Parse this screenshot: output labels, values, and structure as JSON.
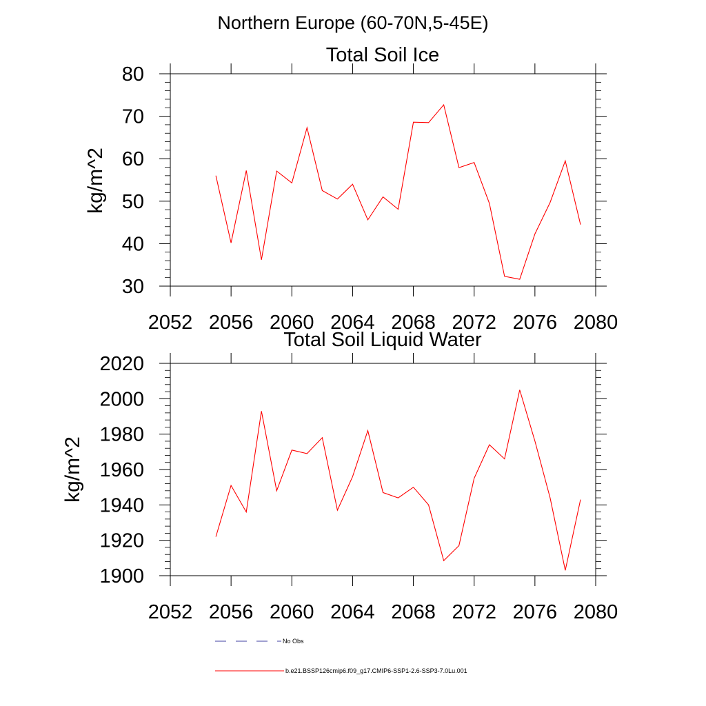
{
  "suptitle": "Northern Europe (60-70N,5-45E)",
  "colors": {
    "model_line": "#ff0000",
    "obs_line": "#3f3fa0",
    "axis": "#000000"
  },
  "chart_data": [
    {
      "type": "line",
      "title": "Total Soil Ice",
      "ylabel": "kg/m^2",
      "xlim": [
        2052,
        2080
      ],
      "ylim": [
        30,
        80
      ],
      "xticks": [
        2052,
        2056,
        2060,
        2064,
        2068,
        2072,
        2076,
        2080
      ],
      "yticks": [
        30,
        40,
        50,
        60,
        70,
        80
      ],
      "series": [
        {
          "name": "b.e21.BSSP126cmip6.f09_g17.CMIP6-SSP1-2.6-SSP3-7.0Lu.001",
          "color": "#ff0000",
          "x": [
            2055,
            2056,
            2057,
            2058,
            2059,
            2060,
            2061,
            2062,
            2063,
            2064,
            2065,
            2066,
            2067,
            2068,
            2069,
            2070,
            2071,
            2072,
            2073,
            2074,
            2075,
            2076,
            2077,
            2078,
            2079
          ],
          "y": [
            56.0,
            40.2,
            57.2,
            36.2,
            57.1,
            54.3,
            67.3,
            52.5,
            50.5,
            54.0,
            45.6,
            51.0,
            48.1,
            68.6,
            68.5,
            72.7,
            57.9,
            59.1,
            49.5,
            32.3,
            31.6,
            42.3,
            49.7,
            59.5,
            44.5
          ]
        }
      ]
    },
    {
      "type": "line",
      "title": "Total Soil Liquid Water",
      "ylabel": "kg/m^2",
      "xlim": [
        2052,
        2080
      ],
      "ylim": [
        1900,
        2020
      ],
      "xticks": [
        2052,
        2056,
        2060,
        2064,
        2068,
        2072,
        2076,
        2080
      ],
      "yticks": [
        1900,
        1920,
        1940,
        1960,
        1980,
        2000,
        2020
      ],
      "series": [
        {
          "name": "b.e21.BSSP126cmip6.f09_g17.CMIP6-SSP1-2.6-SSP3-7.0Lu.001",
          "color": "#ff0000",
          "x": [
            2055,
            2056,
            2057,
            2058,
            2059,
            2060,
            2061,
            2062,
            2063,
            2064,
            2065,
            2066,
            2067,
            2068,
            2069,
            2070,
            2071,
            2072,
            2073,
            2074,
            2075,
            2076,
            2077,
            2078,
            2079
          ],
          "y": [
            1922,
            1951,
            1936,
            1993,
            1948,
            1971,
            1969,
            1978,
            1937,
            1956,
            1982,
            1947,
            1944,
            1950,
            1940,
            1908.5,
            1917,
            1955,
            1974,
            1966,
            2005,
            1976,
            1944,
            1903,
            1943
          ]
        }
      ]
    }
  ],
  "legend": [
    {
      "label": "No Obs",
      "style": "dashed",
      "color": "#3f3fa0"
    },
    {
      "label": "b.e21.BSSP126cmip6.f09_g17.CMIP6-SSP1-2.6-SSP3-7.0Lu.001",
      "style": "solid",
      "color": "#ff0000"
    }
  ]
}
